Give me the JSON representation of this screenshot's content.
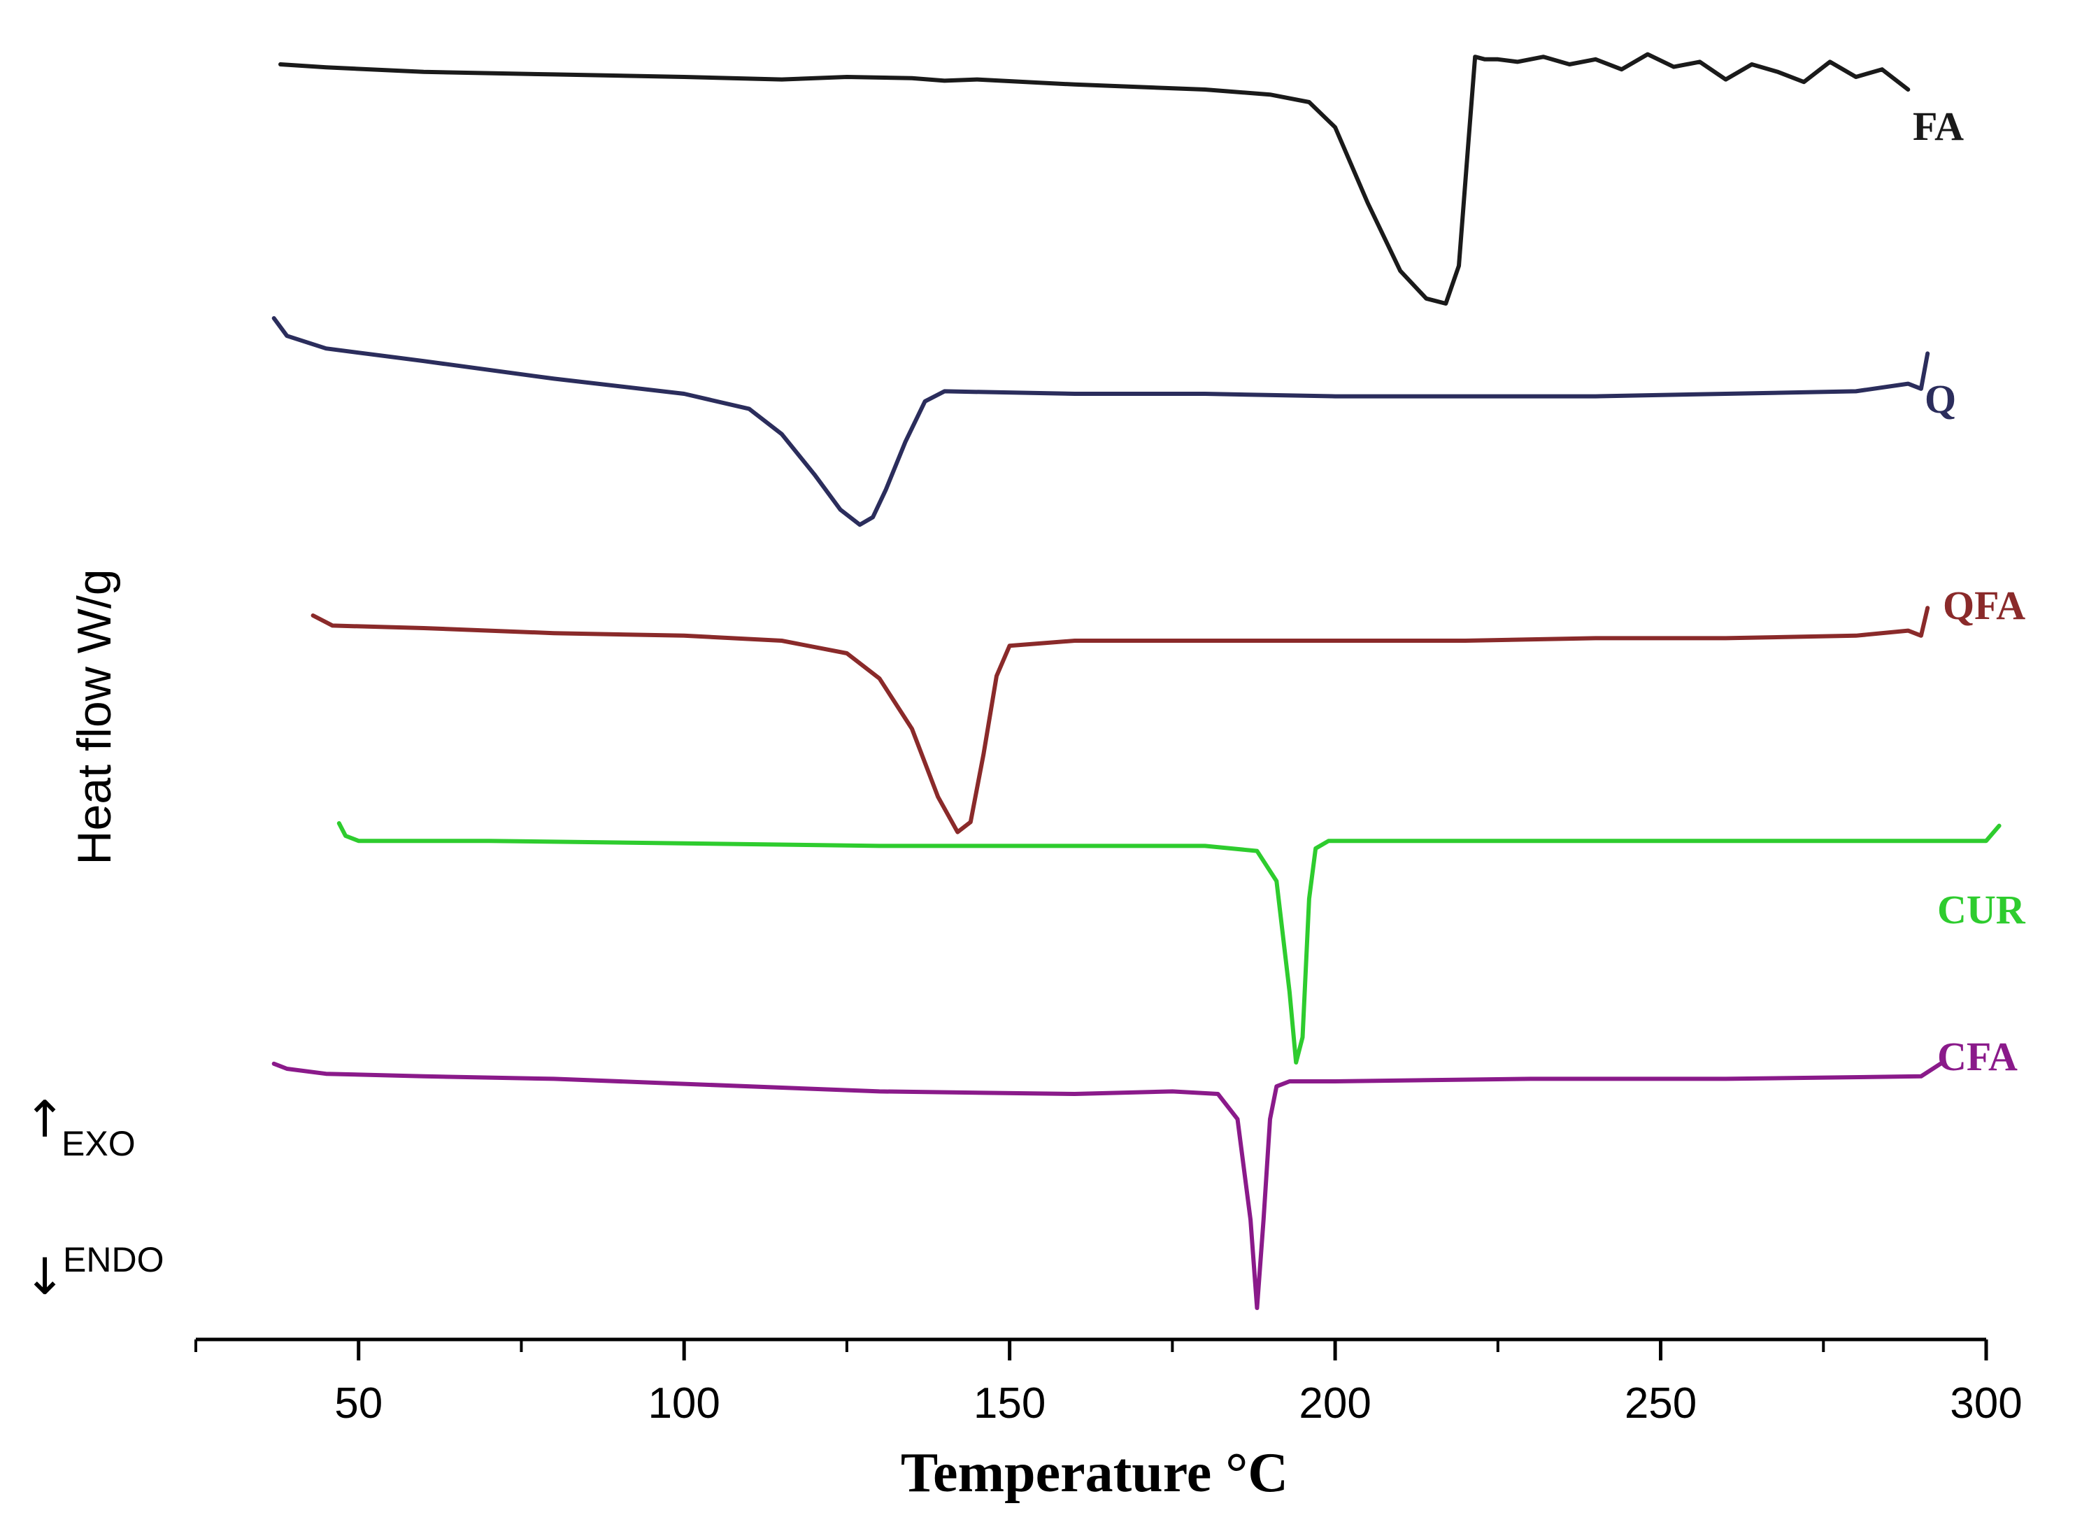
{
  "chart_data": {
    "type": "line",
    "xlabel": "Temperature °C",
    "ylabel": "Heat flow W/g",
    "xlim": [
      25,
      300
    ],
    "xticks": [
      50,
      100,
      150,
      200,
      250,
      300
    ],
    "x_minor_ticks": [
      25,
      75,
      125,
      175,
      225,
      275
    ],
    "grid": false,
    "direction_labels": {
      "exo": "EXO",
      "endo": "ENDO"
    },
    "series": [
      {
        "name": "FA",
        "color": "#1a1a1a",
        "x": [
          38,
          45,
          60,
          80,
          100,
          115,
          125,
          135,
          140,
          145,
          160,
          180,
          190,
          196,
          200,
          205,
          210,
          214,
          217,
          219,
          220.5,
          221.5,
          223,
          225,
          228,
          232,
          236,
          240,
          244,
          248,
          252,
          256,
          260,
          264,
          268,
          272,
          276,
          280,
          284,
          288
        ],
        "y": [
          0.0,
          -0.012,
          -0.03,
          -0.04,
          -0.05,
          -0.06,
          -0.05,
          -0.055,
          -0.065,
          -0.06,
          -0.08,
          -0.1,
          -0.12,
          -0.15,
          -0.25,
          -0.55,
          -0.82,
          -0.93,
          -0.95,
          -0.8,
          -0.3,
          0.03,
          0.02,
          0.02,
          0.01,
          0.03,
          0.0,
          0.02,
          -0.02,
          0.04,
          -0.01,
          0.01,
          -0.06,
          0.0,
          -0.03,
          -0.07,
          0.01,
          -0.05,
          -0.02,
          -0.1
        ]
      },
      {
        "name": "Q",
        "color": "#2b2d5c",
        "x": [
          37,
          39,
          45,
          60,
          80,
          100,
          110,
          115,
          120,
          124,
          127,
          129,
          131,
          134,
          137,
          140,
          160,
          180,
          200,
          220,
          240,
          260,
          280,
          288,
          290,
          291
        ],
        "y": [
          0.0,
          -0.07,
          -0.12,
          -0.17,
          -0.24,
          -0.3,
          -0.36,
          -0.46,
          -0.62,
          -0.76,
          -0.82,
          -0.79,
          -0.68,
          -0.49,
          -0.33,
          -0.29,
          -0.3,
          -0.3,
          -0.31,
          -0.31,
          -0.31,
          -0.3,
          -0.29,
          -0.26,
          -0.28,
          -0.14
        ]
      },
      {
        "name": "QFA",
        "color": "#8a2a2a",
        "x": [
          43,
          46,
          60,
          80,
          100,
          115,
          125,
          130,
          135,
          139,
          142,
          144,
          146,
          148,
          150,
          160,
          180,
          200,
          220,
          240,
          260,
          280,
          288,
          290,
          291
        ],
        "y": [
          0.0,
          -0.04,
          -0.05,
          -0.07,
          -0.08,
          -0.1,
          -0.15,
          -0.25,
          -0.45,
          -0.72,
          -0.86,
          -0.82,
          -0.55,
          -0.24,
          -0.12,
          -0.1,
          -0.1,
          -0.1,
          -0.1,
          -0.09,
          -0.09,
          -0.08,
          -0.06,
          -0.08,
          0.03
        ]
      },
      {
        "name": "CUR",
        "color": "#2ecc2e",
        "x": [
          47,
          48,
          50,
          70,
          100,
          130,
          160,
          180,
          188,
          191,
          193,
          194,
          195,
          196,
          197,
          199,
          210,
          240,
          270,
          300,
          302
        ],
        "y": [
          0.05,
          0.0,
          -0.02,
          -0.02,
          -0.03,
          -0.04,
          -0.04,
          -0.04,
          -0.06,
          -0.18,
          -0.62,
          -0.9,
          -0.8,
          -0.25,
          -0.05,
          -0.02,
          -0.02,
          -0.02,
          -0.02,
          -0.02,
          0.04
        ]
      },
      {
        "name": "CFA",
        "color": "#8a1a8a",
        "x": [
          37,
          39,
          45,
          60,
          80,
          100,
          130,
          160,
          175,
          182,
          185,
          187,
          188,
          189,
          190,
          191,
          193,
          200,
          230,
          260,
          290,
          293
        ],
        "y": [
          0.02,
          0.0,
          -0.02,
          -0.03,
          -0.04,
          -0.06,
          -0.09,
          -0.1,
          -0.09,
          -0.1,
          -0.2,
          -0.6,
          -0.95,
          -0.6,
          -0.2,
          -0.07,
          -0.05,
          -0.05,
          -0.04,
          -0.04,
          -0.03,
          0.02
        ]
      }
    ]
  }
}
